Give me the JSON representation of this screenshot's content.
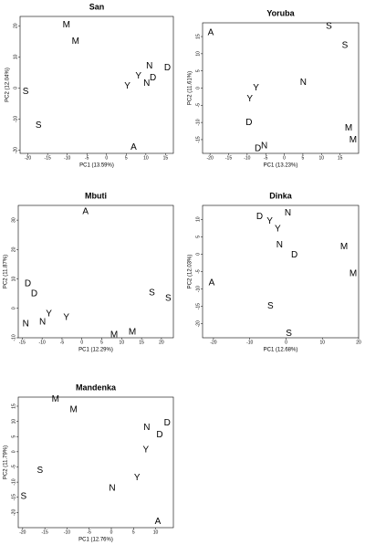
{
  "chart_data": [
    {
      "type": "scatter",
      "title": "San",
      "xlabel": "PC1 (13.59%)",
      "ylabel": "PC2 (12.04%)",
      "xlim": [
        -22,
        17
      ],
      "ylim": [
        -21,
        23
      ],
      "xticks": [
        -20,
        -15,
        -10,
        -5,
        0,
        5,
        10,
        15
      ],
      "yticks": [
        -20,
        -10,
        0,
        10,
        20
      ],
      "series": [
        {
          "name": "A",
          "color": "#e3262b",
          "x": [
            6.9
          ],
          "y": [
            -19.1
          ]
        },
        {
          "name": "S",
          "color": "#a0413c",
          "x": [
            -20.6,
            -17.3
          ],
          "y": [
            -1.2,
            -12
          ]
        },
        {
          "name": "M",
          "color": "#bdbdbd",
          "x": [
            -10.2,
            -7.9
          ],
          "y": [
            20.3,
            15
          ]
        },
        {
          "name": "Y",
          "color": "#000000",
          "x": [
            5.3,
            8.1
          ],
          "y": [
            0.6,
            3.8
          ]
        },
        {
          "name": "N",
          "color": "#2fcf2f",
          "x": [
            10.9,
            10.2
          ],
          "y": [
            7,
            1.5
          ]
        },
        {
          "name": "D",
          "color": "#2b2bc4",
          "x": [
            15.5,
            11.8
          ],
          "y": [
            6.5,
            3.2
          ]
        }
      ]
    },
    {
      "type": "scatter",
      "title": "Yoruba",
      "xlabel": "PC1 (13.23%)",
      "ylabel": "PC2 (11.61%)",
      "xlim": [
        -22,
        20
      ],
      "ylim": [
        -19,
        19
      ],
      "xticks": [
        -20,
        -15,
        -10,
        -5,
        0,
        5,
        10,
        15
      ],
      "yticks": [
        -15,
        -10,
        -5,
        0,
        5,
        10,
        15
      ],
      "series": [
        {
          "name": "A",
          "color": "#e3262b",
          "x": [
            -19.8
          ],
          "y": [
            16.1
          ]
        },
        {
          "name": "S",
          "color": "#a0413c",
          "x": [
            12,
            16.3
          ],
          "y": [
            18,
            12.4
          ]
        },
        {
          "name": "M",
          "color": "#bdbdbd",
          "x": [
            17.3,
            18.5
          ],
          "y": [
            -11.6,
            -15.1
          ]
        },
        {
          "name": "Y",
          "color": "#000000",
          "x": [
            -7.6,
            -9.3
          ],
          "y": [
            0,
            -3.2
          ]
        },
        {
          "name": "N",
          "color": "#2fcf2f",
          "x": [
            5.1,
            -5.4
          ],
          "y": [
            1.6,
            -16.9
          ]
        },
        {
          "name": "D",
          "color": "#2b2bc4",
          "x": [
            -9.5,
            -7.1
          ],
          "y": [
            -10,
            -17.7
          ]
        }
      ]
    },
    {
      "type": "scatter",
      "title": "Mbuti",
      "xlabel": "PC1 (12.29%)",
      "ylabel": "PC2 (11.87%)",
      "xlim": [
        -16,
        23
      ],
      "ylim": [
        -10,
        35
      ],
      "xticks": [
        -15,
        -10,
        -5,
        0,
        5,
        10,
        15,
        20
      ],
      "yticks": [
        -10,
        0,
        10,
        20,
        30
      ],
      "series": [
        {
          "name": "A",
          "color": "#e3262b",
          "x": [
            0.9
          ],
          "y": [
            32.8
          ]
        },
        {
          "name": "S",
          "color": "#a0413c",
          "x": [
            17.6,
            21.7
          ],
          "y": [
            5.3,
            3.4
          ]
        },
        {
          "name": "M",
          "color": "#bdbdbd",
          "x": [
            8.1,
            12.7
          ],
          "y": [
            -9.1,
            -8.1
          ]
        },
        {
          "name": "Y",
          "color": "#000000",
          "x": [
            -8.3,
            -3.9
          ],
          "y": [
            -1.9,
            -3.1
          ]
        },
        {
          "name": "N",
          "color": "#2fcf2f",
          "x": [
            -14.1,
            -9.9
          ],
          "y": [
            -5.3,
            -4.7
          ]
        },
        {
          "name": "D",
          "color": "#2b2bc4",
          "x": [
            -13.6,
            -12
          ],
          "y": [
            8.4,
            5
          ]
        }
      ]
    },
    {
      "type": "scatter",
      "title": "Dinka",
      "xlabel": "PC1 (12.68%)",
      "ylabel": "PC2 (12.03%)",
      "xlim": [
        -23,
        20
      ],
      "ylim": [
        -24,
        14
      ],
      "xticks": [
        -20,
        -10,
        0,
        10,
        20
      ],
      "yticks": [
        -20,
        -15,
        -10,
        -5,
        0,
        5,
        10
      ],
      "series": [
        {
          "name": "A",
          "color": "#e3262b",
          "x": [
            -20.5
          ],
          "y": [
            -8.2
          ]
        },
        {
          "name": "S",
          "color": "#a0413c",
          "x": [
            -4.3,
            0.8
          ],
          "y": [
            -14.9,
            -22.8
          ]
        },
        {
          "name": "M",
          "color": "#bdbdbd",
          "x": [
            16,
            18.5
          ],
          "y": [
            2.1,
            -5.6
          ]
        },
        {
          "name": "Y",
          "color": "#000000",
          "x": [
            -4.5,
            -2.3
          ],
          "y": [
            9.5,
            7.2
          ]
        },
        {
          "name": "N",
          "color": "#2fcf2f",
          "x": [
            0.5,
            -1.8
          ],
          "y": [
            11.8,
            2.6
          ]
        },
        {
          "name": "D",
          "color": "#2b2bc4",
          "x": [
            -7.3,
            2.3
          ],
          "y": [
            10.8,
            -0.3
          ]
        }
      ]
    },
    {
      "type": "scatter",
      "title": "Mandenka",
      "xlabel": "PC1 (12.76%)",
      "ylabel": "PC2 (11.79%)",
      "xlim": [
        -21,
        14
      ],
      "ylim": [
        -25,
        18
      ],
      "xticks": [
        -20,
        -15,
        -10,
        -5,
        0,
        5,
        10
      ],
      "yticks": [
        -20,
        -15,
        -10,
        -5,
        0,
        5,
        10,
        15
      ],
      "series": [
        {
          "name": "A",
          "color": "#e3262b",
          "x": [
            10.5
          ],
          "y": [
            -23
          ]
        },
        {
          "name": "S",
          "color": "#a0413c",
          "x": [
            -16.1,
            -19.8
          ],
          "y": [
            -6.1,
            -14.8
          ]
        },
        {
          "name": "M",
          "color": "#bdbdbd",
          "x": [
            -12.6,
            -8.5
          ],
          "y": [
            17.3,
            13.9
          ]
        },
        {
          "name": "Y",
          "color": "#000000",
          "x": [
            7.8,
            5.8
          ],
          "y": [
            0.6,
            -8.5
          ]
        },
        {
          "name": "N",
          "color": "#2fcf2f",
          "x": [
            8,
            0.2
          ],
          "y": [
            7.9,
            -12.1
          ]
        },
        {
          "name": "D",
          "color": "#2b2bc4",
          "x": [
            12.6,
            10.9
          ],
          "y": [
            9.4,
            5.5
          ]
        }
      ]
    }
  ]
}
